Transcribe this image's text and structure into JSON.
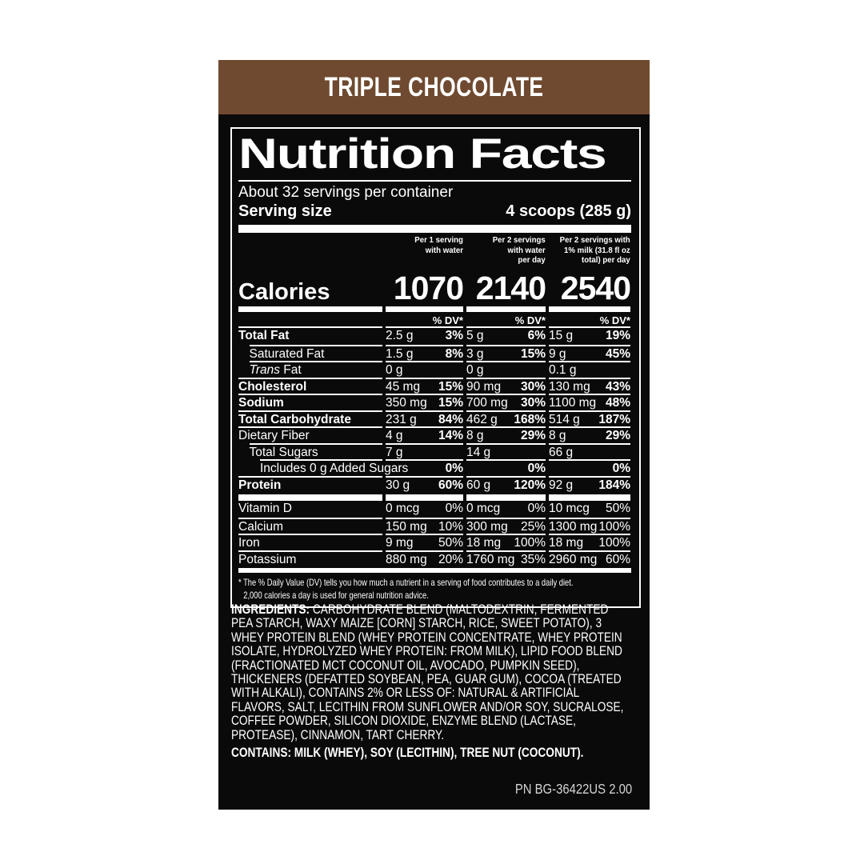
{
  "colors": {
    "header_brown": "#6F4A30",
    "panel_black": "#0A0A0A",
    "text_white": "#FFFFFF",
    "part_number_gray": "#D4D4D4"
  },
  "flavor_title": "TRIPLE CHOCOLATE",
  "nutrition": {
    "title": "Nutrition Facts",
    "servings_per_container": "About 32 servings per container",
    "serving_size_label": "Serving size",
    "serving_size_value": "4 scoops (285 g)",
    "column_headers": [
      "Per 1 serving\nwith water",
      "Per 2 servings\nwith water\nper day",
      "Per 2 servings with\n1% milk (31.8 fl oz\ntotal) per day"
    ],
    "calories_label": "Calories",
    "calories_values": [
      "1070",
      "2140",
      "2540"
    ],
    "dv_header": "% DV*",
    "rows": [
      {
        "label": "Total Fat",
        "bold": true,
        "indent": 0,
        "cols": [
          [
            "2.5 g",
            "3%"
          ],
          [
            "5 g",
            "6%"
          ],
          [
            "15 g",
            "19%"
          ]
        ]
      },
      {
        "label": "Saturated Fat",
        "bold": false,
        "indent": 1,
        "cols": [
          [
            "1.5 g",
            "8%"
          ],
          [
            "3 g",
            "15%"
          ],
          [
            "9 g",
            "45%"
          ]
        ]
      },
      {
        "label_italic": "Trans",
        "label": " Fat",
        "bold": false,
        "indent": 1,
        "cols": [
          [
            "0 g",
            ""
          ],
          [
            "0 g",
            ""
          ],
          [
            "0.1 g",
            ""
          ]
        ]
      },
      {
        "label": "Cholesterol",
        "bold": true,
        "indent": 0,
        "cols": [
          [
            "45 mg",
            "15%"
          ],
          [
            "90 mg",
            "30%"
          ],
          [
            "130 mg",
            "43%"
          ]
        ]
      },
      {
        "label": "Sodium",
        "bold": true,
        "indent": 0,
        "cols": [
          [
            "350 mg",
            "15%"
          ],
          [
            "700 mg",
            "30%"
          ],
          [
            "1100 mg",
            "48%"
          ]
        ]
      },
      {
        "label": "Total Carbohydrate",
        "bold": true,
        "indent": 0,
        "cols": [
          [
            "231 g",
            "84%"
          ],
          [
            "462 g",
            "168%"
          ],
          [
            "514 g",
            "187%"
          ]
        ]
      },
      {
        "label": "Dietary Fiber",
        "bold": false,
        "indent": 0,
        "cols": [
          [
            "4 g",
            "14%"
          ],
          [
            "8 g",
            "29%"
          ],
          [
            "8 g",
            "29%"
          ]
        ]
      },
      {
        "label": "Total Sugars",
        "bold": false,
        "indent": 1,
        "cols": [
          [
            "7 g",
            ""
          ],
          [
            "14 g",
            ""
          ],
          [
            "66 g",
            ""
          ]
        ]
      },
      {
        "label": "Includes 0 g Added Sugars",
        "bold": false,
        "indent": 2,
        "cols": [
          [
            "",
            "0%"
          ],
          [
            "",
            "0%"
          ],
          [
            "",
            "0%"
          ]
        ]
      },
      {
        "label": "Protein",
        "bold": true,
        "indent": 0,
        "cols": [
          [
            "30 g",
            "60%"
          ],
          [
            "60 g",
            "120%"
          ],
          [
            "92 g",
            "184%"
          ]
        ]
      }
    ],
    "vitamin_rows": [
      {
        "label": "Vitamin D",
        "cols": [
          [
            "0 mcg",
            "0%"
          ],
          [
            "0 mcg",
            "0%"
          ],
          [
            "10 mcg",
            "50%"
          ]
        ]
      },
      {
        "label": "Calcium",
        "cols": [
          [
            "150 mg",
            "10%"
          ],
          [
            "300 mg",
            "25%"
          ],
          [
            "1300 mg",
            "100%"
          ]
        ]
      },
      {
        "label": "Iron",
        "cols": [
          [
            "9 mg",
            "50%"
          ],
          [
            "18 mg",
            "100%"
          ],
          [
            "18 mg",
            "100%"
          ]
        ]
      },
      {
        "label": "Potassium",
        "cols": [
          [
            "880 mg",
            "20%"
          ],
          [
            "1760 mg",
            "35%"
          ],
          [
            "2960 mg",
            "60%"
          ]
        ]
      }
    ],
    "footnote_line1": "* The % Daily Value (DV) tells you how much a nutrient in a serving of food contributes to a daily diet.",
    "footnote_line2": "2,000 calories a day is used for general nutrition advice."
  },
  "ingredients_label": "INGREDIENTS:",
  "ingredients_text": " CARBOHYDRATE BLEND (MALTODEXTRIN, FERMENTED PEA STARCH, WAXY MAIZE [CORN] STARCH, RICE, SWEET POTATO), 3 WHEY PROTEIN BLEND (WHEY PROTEIN CONCENTRATE, WHEY PROTEIN ISOLATE, HYDROLYZED WHEY PROTEIN: FROM MILK), LIPID FOOD BLEND (FRACTIONATED MCT COCONUT OIL, AVOCADO, PUMPKIN SEED), THICKENERS (DEFATTED SOYBEAN, PEA, GUAR GUM), COCOA (TREATED WITH ALKALI), CONTAINS 2% OR LESS OF: NATURAL & ARTIFICIAL FLAVORS, SALT, LECITHIN FROM SUNFLOWER AND/OR SOY, SUCRALOSE, COFFEE POWDER, SILICON DIOXIDE, ENZYME BLEND (LACTASE, PROTEASE), CINNAMON, TART CHERRY.",
  "contains_text": "CONTAINS: MILK (WHEY), SOY (LECITHIN), TREE NUT (COCONUT).",
  "part_number": "PN BG-36422US 2.00"
}
